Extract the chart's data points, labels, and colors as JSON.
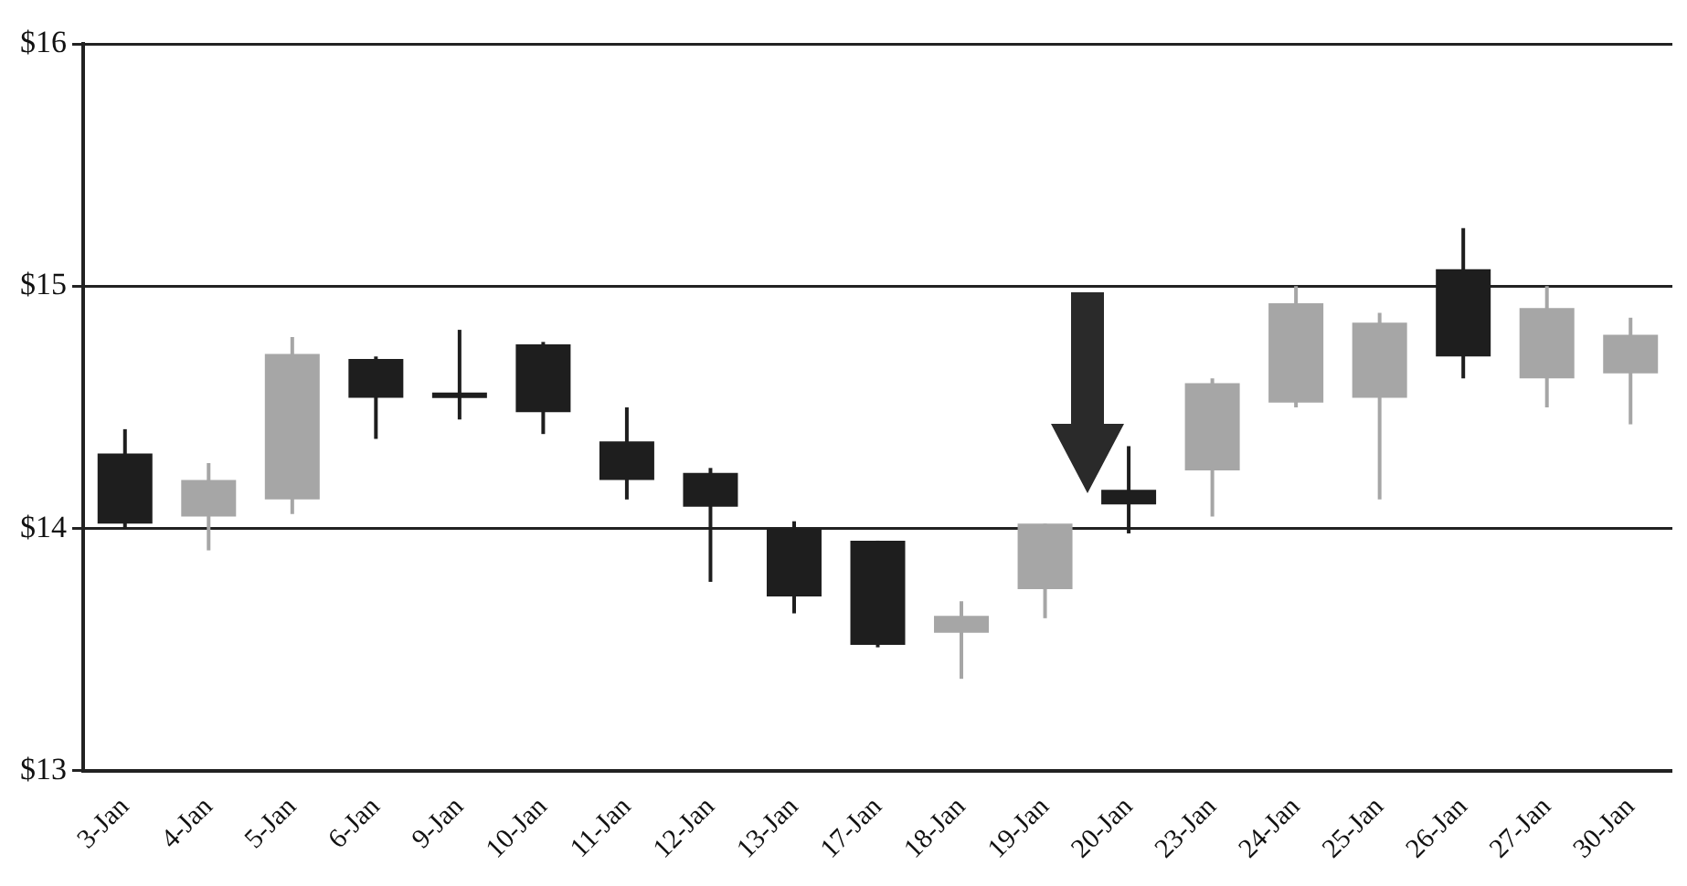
{
  "chart_data": {
    "type": "candlestick",
    "categories": [
      "3-Jan",
      "4-Jan",
      "5-Jan",
      "6-Jan",
      "9-Jan",
      "10-Jan",
      "11-Jan",
      "12-Jan",
      "13-Jan",
      "17-Jan",
      "18-Jan",
      "19-Jan",
      "20-Jan",
      "23-Jan",
      "24-Jan",
      "25-Jan",
      "26-Jan",
      "27-Jan",
      "30-Jan"
    ],
    "ohlc": [
      [
        14.31,
        14.41,
        14.0,
        14.02
      ],
      [
        14.05,
        14.27,
        13.91,
        14.2
      ],
      [
        14.12,
        14.79,
        14.06,
        14.72
      ],
      [
        14.7,
        14.71,
        14.37,
        14.54
      ],
      [
        14.55,
        14.82,
        14.45,
        14.55
      ],
      [
        14.76,
        14.77,
        14.39,
        14.48
      ],
      [
        14.36,
        14.5,
        14.12,
        14.2
      ],
      [
        14.23,
        14.25,
        13.78,
        14.09
      ],
      [
        14.0,
        14.03,
        13.65,
        13.72
      ],
      [
        13.95,
        13.95,
        13.51,
        13.52
      ],
      [
        13.57,
        13.7,
        13.38,
        13.64
      ],
      [
        13.75,
        14.02,
        13.63,
        14.02
      ],
      [
        14.16,
        14.34,
        13.98,
        14.1
      ],
      [
        14.24,
        14.62,
        14.05,
        14.6
      ],
      [
        14.52,
        15.0,
        14.5,
        14.93
      ],
      [
        14.54,
        14.89,
        14.12,
        14.85
      ],
      [
        15.07,
        15.24,
        14.62,
        14.71
      ],
      [
        14.62,
        15.0,
        14.5,
        14.91
      ],
      [
        14.64,
        14.87,
        14.43,
        14.8
      ]
    ],
    "colors": [
      "#1e1e1e",
      "#a6a6a6",
      "#a6a6a6",
      "#1e1e1e",
      "#1e1e1e",
      "#1e1e1e",
      "#1e1e1e",
      "#1e1e1e",
      "#1e1e1e",
      "#1e1e1e",
      "#a6a6a6",
      "#a6a6a6",
      "#1e1e1e",
      "#a6a6a6",
      "#a6a6a6",
      "#a6a6a6",
      "#1e1e1e",
      "#a6a6a6",
      "#a6a6a6"
    ],
    "ylim": [
      13,
      16
    ],
    "yticks": [
      {
        "value": 13,
        "label": "$13"
      },
      {
        "value": 14,
        "label": "$14"
      },
      {
        "value": 15,
        "label": "$15"
      },
      {
        "value": 16,
        "label": "$16"
      }
    ],
    "grid": "y"
  }
}
